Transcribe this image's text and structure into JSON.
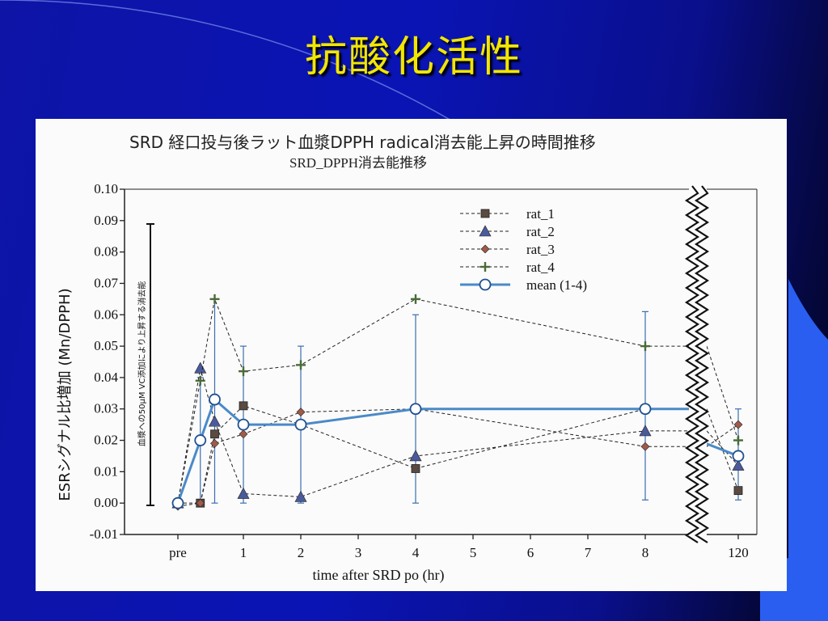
{
  "slide": {
    "title": "抗酸化活性"
  },
  "figure": {
    "title": "SRD 経口投与後ラット血漿DPPH radical消去能上昇の時間推移",
    "note": "血漿への50μM VC添加により上昇する消去能"
  },
  "colors": {
    "rat_1": "#5a4a40",
    "rat_2": "#4a5a9a",
    "rat_3": "#a05a4a",
    "rat_4": "#4a6a3a",
    "mean": "#4a8ac8",
    "background": "#0a14b4",
    "title": "#f2e600"
  },
  "chart_data": {
    "type": "line",
    "title": "SRD_DPPH消去能推移",
    "xlabel": "time after SRD po (hr)",
    "ylabel": "ESRシグナル比増加 (Mn/DPPH)",
    "ylim": [
      -0.01,
      0.1
    ],
    "yticks": [
      "0.10",
      "0.09",
      "0.08",
      "0.07",
      "0.06",
      "0.05",
      "0.04",
      "0.03",
      "0.02",
      "0.01",
      "0.00",
      "-0.01"
    ],
    "xticks": [
      "pre",
      "1",
      "2",
      "3",
      "4",
      "5",
      "6",
      "7",
      "8",
      "120"
    ],
    "axis_break": "between 8 and 120 hr",
    "legend_position": "top-right",
    "series": [
      {
        "name": "rat_1",
        "marker": "square",
        "style": "dashed",
        "x": [
          "pre",
          0.25,
          0.5,
          1,
          2,
          4,
          8,
          120
        ],
        "y": [
          0.0,
          0.0,
          0.022,
          0.031,
          0.025,
          0.011,
          0.03,
          0.004
        ]
      },
      {
        "name": "rat_2",
        "marker": "triangle",
        "style": "dashed",
        "x": [
          "pre",
          0.25,
          0.5,
          1,
          2,
          4,
          8,
          120
        ],
        "y": [
          0.0,
          0.043,
          0.026,
          0.003,
          0.002,
          0.015,
          0.023,
          0.012
        ]
      },
      {
        "name": "rat_3",
        "marker": "diamond",
        "style": "dashed",
        "x": [
          "pre",
          0.25,
          0.5,
          1,
          2,
          4,
          8,
          120
        ],
        "y": [
          -0.001,
          0.0,
          0.019,
          0.022,
          0.029,
          0.03,
          0.018,
          0.025
        ]
      },
      {
        "name": "rat_4",
        "marker": "plus",
        "style": "dashed",
        "x": [
          "pre",
          0.25,
          0.5,
          1,
          2,
          4,
          8,
          120
        ],
        "y": [
          0.0,
          0.039,
          0.065,
          0.042,
          0.044,
          0.065,
          0.05,
          0.02
        ]
      },
      {
        "name": "mean (1-4)",
        "marker": "circle",
        "style": "solid",
        "x": [
          "pre",
          0.25,
          0.5,
          1,
          2,
          4,
          8,
          120
        ],
        "y": [
          0.0,
          0.02,
          0.033,
          0.025,
          0.025,
          0.03,
          0.03,
          0.015
        ],
        "error_low": [
          0.0,
          0.0,
          0.0,
          0.0,
          0.0,
          0.0,
          0.001,
          0.001
        ],
        "error_high": [
          0.0,
          0.04,
          0.065,
          0.05,
          0.05,
          0.06,
          0.061,
          0.03
        ]
      }
    ]
  }
}
